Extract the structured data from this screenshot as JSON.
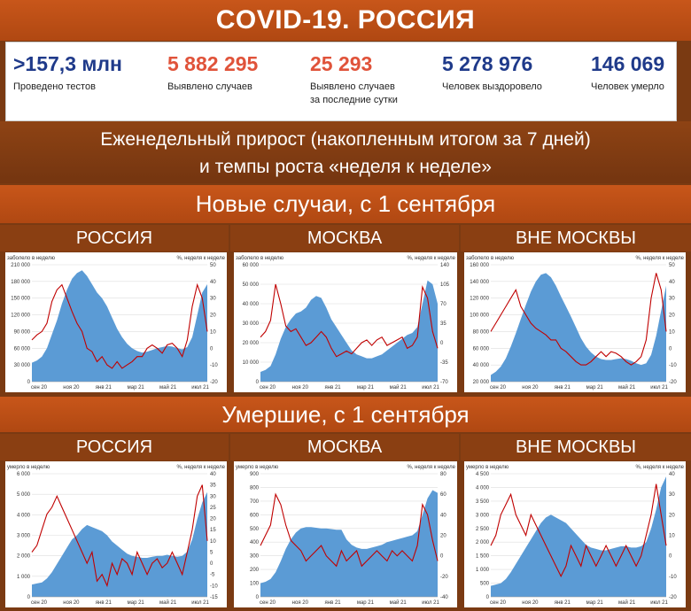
{
  "title": "COVID-19. РОССИЯ",
  "stats": [
    {
      "value": ">157,3 млн",
      "label": "Проведено тестов",
      "color": "#1f3a8a"
    },
    {
      "value": "5 882 295",
      "label": "Выявлено случаев",
      "color": "#e0533a"
    },
    {
      "value": "25 293",
      "label": "Выявлено случаев\nза последние сутки",
      "color": "#e0533a"
    },
    {
      "value": "5 278 976",
      "label": "Человек выздоровело",
      "color": "#1f3a8a"
    },
    {
      "value": "146 069",
      "label": "Человек умерло",
      "color": "#1f3a8a"
    }
  ],
  "weekly_line1": "Еженедельный прирост (накопленным итогом за 7 дней)",
  "weekly_line2": "и темпы роста «неделя к неделе»",
  "section_cases": "Новые случаи, с 1 сентября",
  "section_deaths": "Умершие, с 1 сентября",
  "region_names": [
    "РОССИЯ",
    "МОСКВА",
    "ВНЕ МОСКВЫ"
  ],
  "colors": {
    "area": "#5b9bd5",
    "line": "#c00000",
    "header": "#c8561a"
  },
  "chart_data": [
    {
      "type": "area",
      "group": "cases",
      "region": "РОССИЯ",
      "left_label": "заболело в неделю",
      "right_label": "%, неделя к неделе",
      "left_ticks": [
        "210 000",
        "180 000",
        "150 000",
        "120 000",
        "90 000",
        "60 000",
        "30 000",
        "0"
      ],
      "left_range": [
        0,
        210000
      ],
      "right_ticks": [
        "50",
        "40",
        "30",
        "20",
        "10",
        "0",
        "-10",
        "-20"
      ],
      "right_range": [
        -20,
        50
      ],
      "x_ticks": [
        "сен 20",
        "ноя 20",
        "янв 21",
        "мар 21",
        "май 21",
        "июл 21"
      ],
      "series": [
        {
          "kind": "area",
          "values": [
            34000,
            38000,
            45000,
            60000,
            85000,
            110000,
            140000,
            165000,
            185000,
            195000,
            200000,
            190000,
            175000,
            160000,
            150000,
            135000,
            115000,
            95000,
            80000,
            68000,
            60000,
            55000,
            52000,
            54000,
            57000,
            60000,
            62000,
            64000,
            63000,
            60000,
            58000,
            62000,
            80000,
            120000,
            160000,
            175000
          ]
        },
        {
          "kind": "line",
          "values": [
            5,
            8,
            10,
            15,
            28,
            35,
            38,
            30,
            22,
            15,
            10,
            0,
            -2,
            -8,
            -5,
            -10,
            -12,
            -8,
            -12,
            -10,
            -8,
            -5,
            -5,
            0,
            2,
            0,
            -3,
            2,
            3,
            0,
            -5,
            5,
            25,
            38,
            30,
            10
          ]
        }
      ]
    },
    {
      "type": "area",
      "group": "cases",
      "region": "МОСКВА",
      "left_label": "заболело в неделю",
      "right_label": "%, неделя к неделе",
      "left_ticks": [
        "60 000",
        "50 000",
        "40 000",
        "30 000",
        "20 000",
        "10 000",
        "0"
      ],
      "left_range": [
        0,
        60000
      ],
      "right_ticks": [
        "140",
        "105",
        "70",
        "35",
        "0",
        "-35",
        "-70"
      ],
      "right_range": [
        -70,
        140
      ],
      "x_ticks": [
        "сен 20",
        "ноя 20",
        "янв 21",
        "мар 21",
        "май 21",
        "июл 21"
      ],
      "series": [
        {
          "kind": "area",
          "values": [
            5000,
            6000,
            8000,
            14000,
            22000,
            28000,
            32000,
            35000,
            36000,
            38000,
            42000,
            44000,
            43000,
            38000,
            32000,
            28000,
            24000,
            20000,
            16000,
            14000,
            13000,
            12000,
            12000,
            13000,
            14000,
            16000,
            18000,
            20000,
            22000,
            24000,
            25000,
            28000,
            40000,
            52000,
            50000,
            40000
          ]
        },
        {
          "kind": "line",
          "values": [
            10,
            20,
            40,
            105,
            70,
            30,
            20,
            25,
            10,
            -5,
            0,
            10,
            20,
            10,
            -10,
            -25,
            -20,
            -15,
            -20,
            -10,
            0,
            5,
            -5,
            5,
            10,
            -5,
            0,
            5,
            10,
            -10,
            -5,
            10,
            100,
            80,
            20,
            -10
          ]
        }
      ]
    },
    {
      "type": "area",
      "group": "cases",
      "region": "ВНЕ МОСКВЫ",
      "left_label": "заболело в неделю",
      "right_label": "%, неделя к неделе",
      "left_ticks": [
        "160 000",
        "140 000",
        "120 000",
        "100 000",
        "80 000",
        "60 000",
        "40 000",
        "20 000"
      ],
      "left_range": [
        20000,
        160000
      ],
      "right_ticks": [
        "50",
        "40",
        "30",
        "20",
        "10",
        "0",
        "-10",
        "-20"
      ],
      "right_range": [
        -20,
        50
      ],
      "x_ticks": [
        "сен 20",
        "ноя 20",
        "янв 21",
        "мар 21",
        "май 21",
        "июл 21"
      ],
      "series": [
        {
          "kind": "area",
          "values": [
            28000,
            32000,
            38000,
            48000,
            62000,
            78000,
            95000,
            112000,
            128000,
            140000,
            148000,
            150000,
            145000,
            135000,
            122000,
            110000,
            98000,
            85000,
            72000,
            62000,
            55000,
            50000,
            47000,
            46000,
            46000,
            47000,
            48000,
            47000,
            45000,
            42000,
            40000,
            42000,
            52000,
            75000,
            105000,
            135000
          ]
        },
        {
          "kind": "line",
          "values": [
            10,
            15,
            20,
            25,
            30,
            35,
            25,
            20,
            15,
            12,
            10,
            8,
            5,
            5,
            0,
            -2,
            -5,
            -8,
            -10,
            -10,
            -8,
            -5,
            -2,
            -5,
            -2,
            -3,
            -5,
            -8,
            -10,
            -8,
            -5,
            5,
            30,
            45,
            35,
            10
          ]
        }
      ]
    },
    {
      "type": "area",
      "group": "deaths",
      "region": "РОССИЯ",
      "left_label": "умерло в неделю",
      "right_label": "%, неделя к неделе",
      "left_ticks": [
        "6 000",
        "5 000",
        "4 000",
        "3 000",
        "2 000",
        "1 000",
        "0"
      ],
      "left_range": [
        0,
        6000
      ],
      "right_ticks": [
        "40",
        "35",
        "30",
        "25",
        "20",
        "15",
        "10",
        "5",
        "0",
        "-5",
        "-10",
        "-15"
      ],
      "right_range": [
        -15,
        40
      ],
      "x_ticks": [
        "сен 20",
        "ноя 20",
        "янв 21",
        "мар 21",
        "май 21",
        "июл 21"
      ],
      "series": [
        {
          "kind": "area",
          "values": [
            600,
            650,
            700,
            900,
            1200,
            1600,
            2000,
            2400,
            2800,
            3000,
            3300,
            3500,
            3400,
            3300,
            3200,
            3000,
            2700,
            2500,
            2300,
            2100,
            2000,
            1950,
            1900,
            1900,
            1950,
            2000,
            2000,
            2050,
            2000,
            1950,
            2000,
            2200,
            2800,
            3800,
            4600,
            5100
          ]
        },
        {
          "kind": "line",
          "values": [
            5,
            8,
            15,
            22,
            25,
            30,
            25,
            20,
            15,
            10,
            5,
            0,
            5,
            -8,
            -5,
            -10,
            0,
            -5,
            2,
            0,
            -5,
            5,
            0,
            -5,
            0,
            2,
            -2,
            0,
            5,
            0,
            -5,
            5,
            15,
            30,
            35,
            10
          ]
        }
      ]
    },
    {
      "type": "area",
      "group": "deaths",
      "region": "МОСКВА",
      "left_label": "умерло в неделю",
      "right_label": "%, неделя к неделе",
      "left_ticks": [
        "900",
        "800",
        "700",
        "600",
        "500",
        "400",
        "300",
        "200",
        "100",
        "0"
      ],
      "left_range": [
        0,
        900
      ],
      "right_ticks": [
        "80",
        "60",
        "40",
        "20",
        "0",
        "-20",
        "-40"
      ],
      "right_range": [
        -40,
        80
      ],
      "x_ticks": [
        "сен 20",
        "ноя 20",
        "янв 21",
        "мар 21",
        "май 21",
        "июл 21"
      ],
      "series": [
        {
          "kind": "area",
          "values": [
            100,
            110,
            130,
            180,
            260,
            350,
            420,
            470,
            500,
            510,
            510,
            505,
            500,
            500,
            495,
            490,
            490,
            420,
            380,
            360,
            350,
            350,
            360,
            370,
            380,
            400,
            410,
            420,
            430,
            440,
            450,
            480,
            600,
            720,
            780,
            760
          ]
        },
        {
          "kind": "line",
          "values": [
            10,
            20,
            30,
            60,
            50,
            30,
            15,
            10,
            5,
            -5,
            0,
            5,
            10,
            0,
            -5,
            -10,
            5,
            -5,
            0,
            5,
            -10,
            -5,
            0,
            5,
            0,
            -5,
            5,
            0,
            5,
            0,
            -5,
            10,
            50,
            40,
            15,
            -5
          ]
        }
      ]
    },
    {
      "type": "area",
      "group": "deaths",
      "region": "ВНЕ МОСКВЫ",
      "left_label": "умерло в неделю",
      "right_label": "%, неделя к неделе",
      "left_ticks": [
        "4 500",
        "4 000",
        "3 500",
        "3 000",
        "2 500",
        "2 000",
        "1 500",
        "1 000",
        "500",
        "0"
      ],
      "left_range": [
        0,
        4500
      ],
      "right_ticks": [
        "40",
        "30",
        "20",
        "10",
        "0",
        "-10",
        "-20"
      ],
      "right_range": [
        -20,
        40
      ],
      "x_ticks": [
        "сен 20",
        "ноя 20",
        "янв 21",
        "мар 21",
        "май 21",
        "июл 21"
      ],
      "series": [
        {
          "kind": "area",
          "values": [
            400,
            450,
            500,
            650,
            900,
            1200,
            1500,
            1800,
            2100,
            2400,
            2700,
            2900,
            3000,
            2900,
            2800,
            2700,
            2500,
            2300,
            2100,
            1900,
            1800,
            1750,
            1700,
            1700,
            1750,
            1800,
            1850,
            1850,
            1800,
            1800,
            1850,
            2000,
            2500,
            3200,
            4000,
            4400
          ]
        },
        {
          "kind": "line",
          "values": [
            5,
            10,
            20,
            25,
            30,
            20,
            15,
            10,
            20,
            15,
            10,
            5,
            0,
            -5,
            -10,
            -5,
            5,
            0,
            -5,
            5,
            0,
            -5,
            0,
            5,
            0,
            -5,
            0,
            5,
            0,
            -5,
            0,
            10,
            20,
            35,
            20,
            5
          ]
        }
      ]
    }
  ]
}
